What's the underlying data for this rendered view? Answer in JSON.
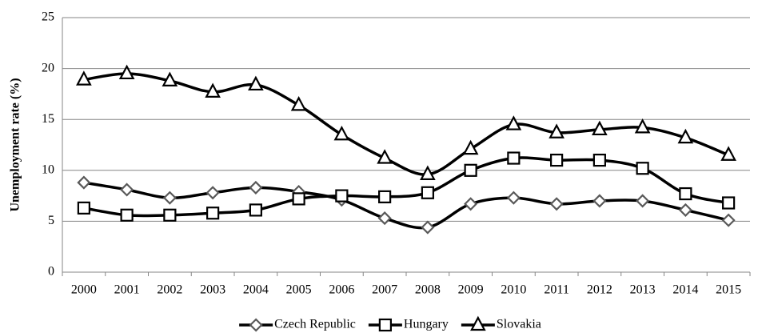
{
  "chart_data": {
    "type": "line",
    "y_label": "Unemployment rate (%)",
    "categories": [
      "2000",
      "2001",
      "2002",
      "2003",
      "2004",
      "2005",
      "2006",
      "2007",
      "2008",
      "2009",
      "2010",
      "2011",
      "2012",
      "2013",
      "2014",
      "2015"
    ],
    "series": [
      {
        "name": "Czech Republic",
        "color": "#000000",
        "marker_color": "#595959",
        "marker": "diamond",
        "values": [
          8.8,
          8.1,
          7.3,
          7.8,
          8.3,
          7.9,
          7.1,
          5.3,
          4.4,
          6.7,
          7.3,
          6.7,
          7.0,
          7.0,
          6.1,
          5.1
        ]
      },
      {
        "name": "Hungary",
        "color": "#000000",
        "marker_color": "#000000",
        "marker": "square",
        "values": [
          6.3,
          5.6,
          5.6,
          5.8,
          6.1,
          7.2,
          7.5,
          7.4,
          7.8,
          10.0,
          11.2,
          11.0,
          11.0,
          10.2,
          7.7,
          6.8
        ]
      },
      {
        "name": "Slovakia",
        "color": "#000000",
        "marker_color": "#000000",
        "marker": "triangle",
        "values": [
          18.9,
          19.5,
          18.8,
          17.7,
          18.4,
          16.4,
          13.5,
          11.2,
          9.6,
          12.1,
          14.5,
          13.7,
          14.0,
          14.2,
          13.2,
          11.5
        ]
      }
    ],
    "ylim": [
      0,
      25
    ],
    "yticks": [
      0,
      5,
      10,
      15,
      20,
      25
    ],
    "grid": true,
    "smooth": true,
    "legend": "bottom"
  }
}
